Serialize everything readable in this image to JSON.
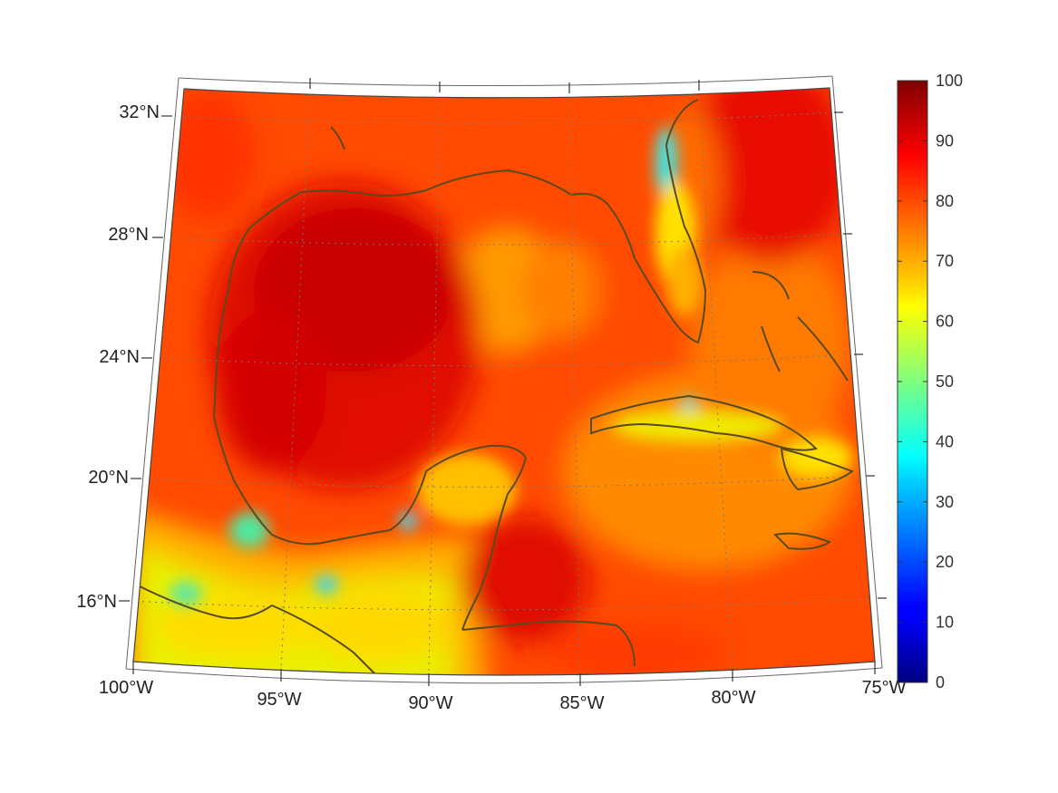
{
  "figure": {
    "title": "",
    "colormap": "jet",
    "coastline_color": "#5a4a1e",
    "grid_color": "#777777",
    "frame_color": "#444444"
  },
  "map": {
    "lat_labels": [
      "32°N",
      "28°N",
      "24°N",
      "20°N",
      "16°N"
    ],
    "lon_labels": [
      "100°W",
      "95°W",
      "90°W",
      "85°W",
      "80°W",
      "75°W"
    ]
  },
  "colorbar": {
    "min": 0,
    "max": 100,
    "ticks": [
      "0",
      "10",
      "20",
      "30",
      "40",
      "50",
      "60",
      "70",
      "80",
      "90",
      "100"
    ]
  }
}
